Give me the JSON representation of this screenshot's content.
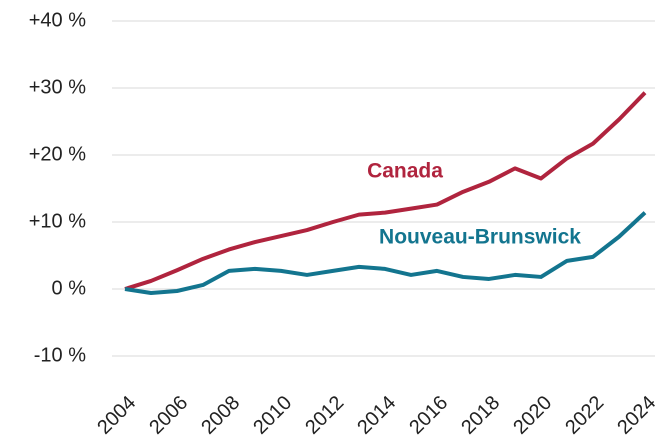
{
  "chart_data": {
    "type": "line",
    "x": [
      2004,
      2005,
      2006,
      2007,
      2008,
      2009,
      2010,
      2011,
      2012,
      2013,
      2014,
      2015,
      2016,
      2017,
      2018,
      2019,
      2020,
      2021,
      2022,
      2023,
      2024
    ],
    "xlim": [
      2004,
      2024
    ],
    "xticks": [
      2004,
      2006,
      2008,
      2010,
      2012,
      2014,
      2016,
      2018,
      2020,
      2022,
      2024
    ],
    "ylim": [
      -10,
      40
    ],
    "yticks": [
      {
        "value": -10,
        "label": "-10 %"
      },
      {
        "value": 0,
        "label": "0 %"
      },
      {
        "value": 10,
        "label": "+10 %"
      },
      {
        "value": 20,
        "label": "+20 %"
      },
      {
        "value": 30,
        "label": "+30 %"
      },
      {
        "value": 40,
        "label": "+40 %"
      }
    ],
    "grid": true,
    "series": [
      {
        "name": "Canada",
        "color": "#b0243e",
        "values": [
          0,
          1.2,
          2.8,
          4.5,
          5.9,
          7,
          7.9,
          8.8,
          10,
          11.1,
          11.4,
          12,
          12.6,
          14.5,
          16,
          18,
          16.5,
          19.5,
          21.7,
          25.3,
          29.3
        ]
      },
      {
        "name": "Nouveau-Brunswick",
        "color": "#13758f",
        "values": [
          0,
          -0.6,
          -0.3,
          0.6,
          2.7,
          3,
          2.7,
          2.1,
          2.7,
          3.3,
          3,
          2.1,
          2.7,
          1.8,
          1.5,
          2.1,
          1.8,
          4.2,
          4.8,
          7.8,
          11.4
        ]
      }
    ]
  }
}
